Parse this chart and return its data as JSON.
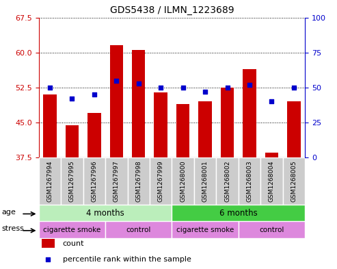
{
  "title": "GDS5438 / ILMN_1223689",
  "samples": [
    "GSM1267994",
    "GSM1267995",
    "GSM1267996",
    "GSM1267997",
    "GSM1267998",
    "GSM1267999",
    "GSM1268000",
    "GSM1268001",
    "GSM1268002",
    "GSM1268003",
    "GSM1268004",
    "GSM1268005"
  ],
  "count_values": [
    51.0,
    44.5,
    47.0,
    61.5,
    60.5,
    51.5,
    49.0,
    49.5,
    52.5,
    56.5,
    38.5,
    49.5
  ],
  "percentile_values": [
    50,
    42,
    45,
    55,
    53,
    50,
    50,
    47,
    50,
    52,
    40,
    50
  ],
  "ylim_left": [
    37.5,
    67.5
  ],
  "ylim_right": [
    0,
    100
  ],
  "yticks_left": [
    37.5,
    45.0,
    52.5,
    60.0,
    67.5
  ],
  "yticks_right": [
    0,
    25,
    50,
    75,
    100
  ],
  "bar_color": "#cc0000",
  "dot_color": "#0000cc",
  "bar_width": 0.6,
  "left_label_color": "#cc0000",
  "right_label_color": "#0000cc",
  "background_color": "#ffffff",
  "sample_box_color": "#cccccc",
  "age_colors": [
    "#bbeebb",
    "#44cc44"
  ],
  "stress_colors": [
    "#dd88dd",
    "#dd88dd",
    "#dd88dd",
    "#dd88dd"
  ],
  "age_groups": [
    {
      "label": "4 months",
      "start": 0,
      "end": 6
    },
    {
      "label": "6 months",
      "start": 6,
      "end": 12
    }
  ],
  "stress_groups": [
    {
      "label": "cigarette smoke",
      "start": 0,
      "end": 3
    },
    {
      "label": "control",
      "start": 3,
      "end": 6
    },
    {
      "label": "cigarette smoke",
      "start": 6,
      "end": 9
    },
    {
      "label": "control",
      "start": 9,
      "end": 12
    }
  ]
}
